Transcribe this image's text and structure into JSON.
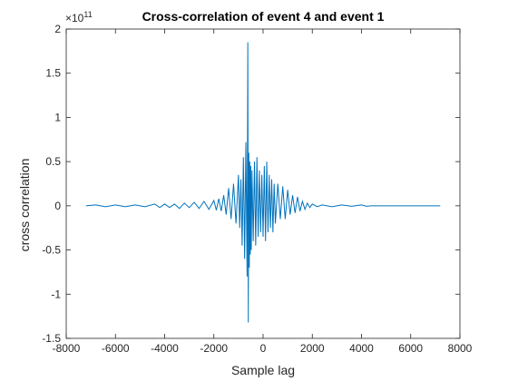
{
  "chart_data": {
    "type": "line",
    "title": "Cross-correlation of event 4 and event 1",
    "xlabel": "Sample lag",
    "ylabel": "cross correlation",
    "xlim": [
      -8000,
      8000
    ],
    "ylim": [
      -1.5,
      2
    ],
    "y_exponent_label": "×10",
    "y_exponent": "11",
    "xticks": [
      -8000,
      -6000,
      -4000,
      -2000,
      0,
      2000,
      4000,
      6000,
      8000
    ],
    "xtick_labels": [
      "-8000",
      "-6000",
      "-4000",
      "-2000",
      "0",
      "2000",
      "4000",
      "6000",
      "8000"
    ],
    "yticks": [
      -1.5,
      -1,
      -0.5,
      0,
      0.5,
      1,
      1.5,
      2
    ],
    "ytick_labels": [
      "-1.5",
      "-1",
      "-0.5",
      "0",
      "0.5",
      "1",
      "1.5",
      "2"
    ],
    "grid": false,
    "series": [
      {
        "color": "#0072bd",
        "x": [
          -7200,
          -6800,
          -6400,
          -6000,
          -5600,
          -5200,
          -4800,
          -4400,
          -4200,
          -4000,
          -3800,
          -3600,
          -3400,
          -3200,
          -3000,
          -2800,
          -2600,
          -2400,
          -2200,
          -2000,
          -1900,
          -1800,
          -1700,
          -1600,
          -1500,
          -1400,
          -1300,
          -1200,
          -1100,
          -1000,
          -950,
          -900,
          -850,
          -800,
          -750,
          -700,
          -650,
          -620,
          -600,
          -580,
          -560,
          -540,
          -520,
          -500,
          -480,
          -450,
          -400,
          -350,
          -300,
          -250,
          -200,
          -150,
          -100,
          -50,
          0,
          50,
          100,
          150,
          200,
          250,
          300,
          350,
          400,
          450,
          500,
          600,
          700,
          800,
          900,
          1000,
          1100,
          1200,
          1300,
          1400,
          1500,
          1600,
          1700,
          1800,
          1900,
          2000,
          2200,
          2400,
          2800,
          3200,
          3600,
          4000,
          4200,
          4400,
          5000,
          6000,
          7200
        ],
        "y": [
          0,
          0.01,
          -0.01,
          0.01,
          -0.01,
          0.01,
          -0.01,
          0.02,
          -0.02,
          0.02,
          -0.02,
          0.02,
          -0.03,
          0.03,
          -0.02,
          0.04,
          -0.03,
          0.05,
          -0.04,
          0.06,
          -0.05,
          0.08,
          -0.06,
          0.12,
          -0.1,
          0.2,
          -0.15,
          0.25,
          -0.2,
          0.35,
          -0.25,
          0.3,
          -0.45,
          0.55,
          -0.6,
          0.72,
          -0.8,
          1.85,
          -1.32,
          0.6,
          -0.7,
          0.5,
          -0.55,
          0.45,
          -0.5,
          0.4,
          -0.4,
          0.5,
          -0.45,
          0.55,
          -0.35,
          0.4,
          -0.3,
          0.35,
          -0.35,
          0.45,
          -0.4,
          0.5,
          -0.3,
          0.35,
          -0.25,
          0.3,
          -0.3,
          0.25,
          -0.2,
          0.25,
          -0.15,
          0.22,
          -0.15,
          0.18,
          -0.1,
          0.12,
          -0.08,
          0.1,
          -0.06,
          0.05,
          -0.04,
          0.03,
          -0.02,
          0.02,
          -0.01,
          0.01,
          -0.01,
          0.01,
          -0.005,
          0.01,
          -0.005,
          0,
          0,
          0,
          0
        ]
      }
    ]
  }
}
